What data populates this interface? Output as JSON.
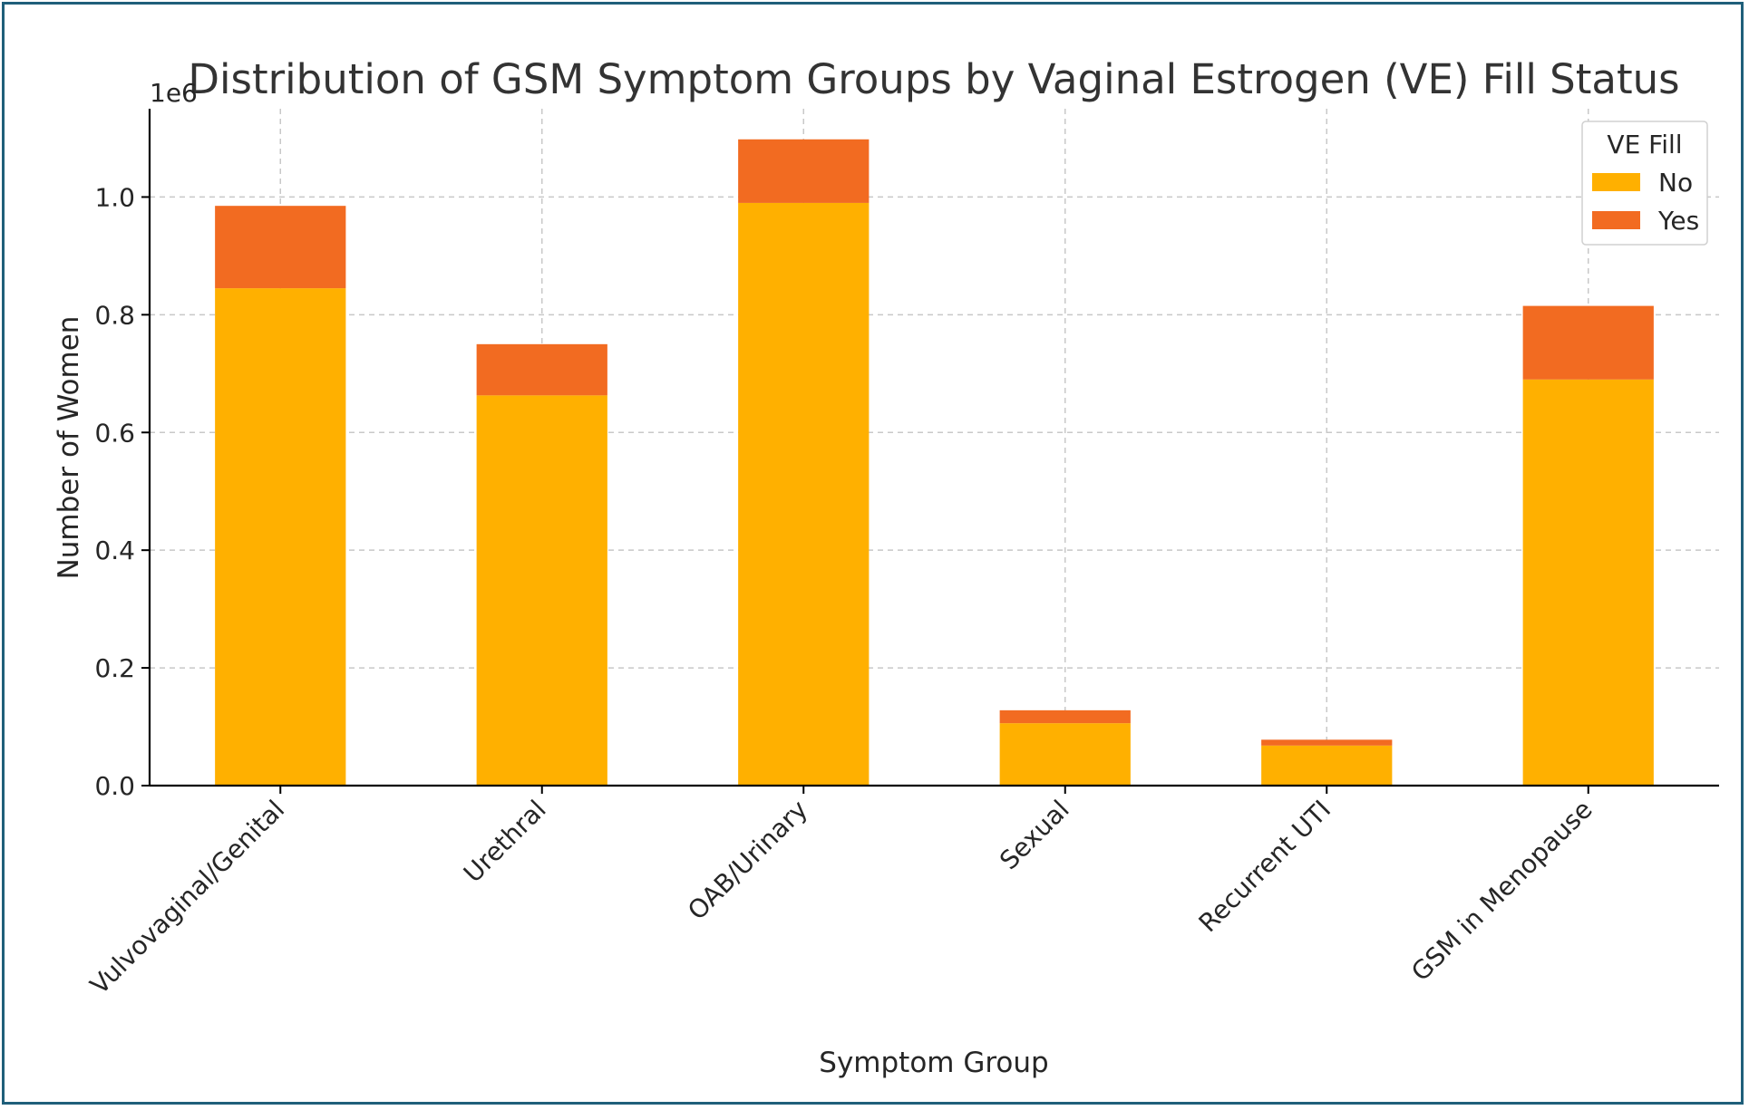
{
  "chart_data": {
    "type": "bar",
    "stacked": true,
    "title": "Distribution of GSM Symptom Groups by Vaginal Estrogen (VE) Fill Status",
    "xlabel": "Symptom Group",
    "ylabel": "Number of Women",
    "offset_label": "1e6",
    "ylim": [
      0,
      1.15
    ],
    "yticks": [
      "0.0",
      "0.2",
      "0.4",
      "0.6",
      "0.8",
      "1.0"
    ],
    "grid": true,
    "categories": [
      "Vulvovaginal/Genital",
      "Urethral",
      "OAB/Urinary",
      "Sexual",
      "Recurrent UTI",
      "GSM in Menopause"
    ],
    "legend": {
      "title": "VE Fill",
      "placement": "top-right"
    },
    "series": [
      {
        "name": "No",
        "color": "#FFB000",
        "values": [
          0.845,
          0.663,
          0.99,
          0.106,
          0.068,
          0.69
        ]
      },
      {
        "name": "Yes",
        "color": "#F26B21",
        "values": [
          0.14,
          0.087,
          0.108,
          0.022,
          0.01,
          0.125
        ]
      }
    ]
  }
}
